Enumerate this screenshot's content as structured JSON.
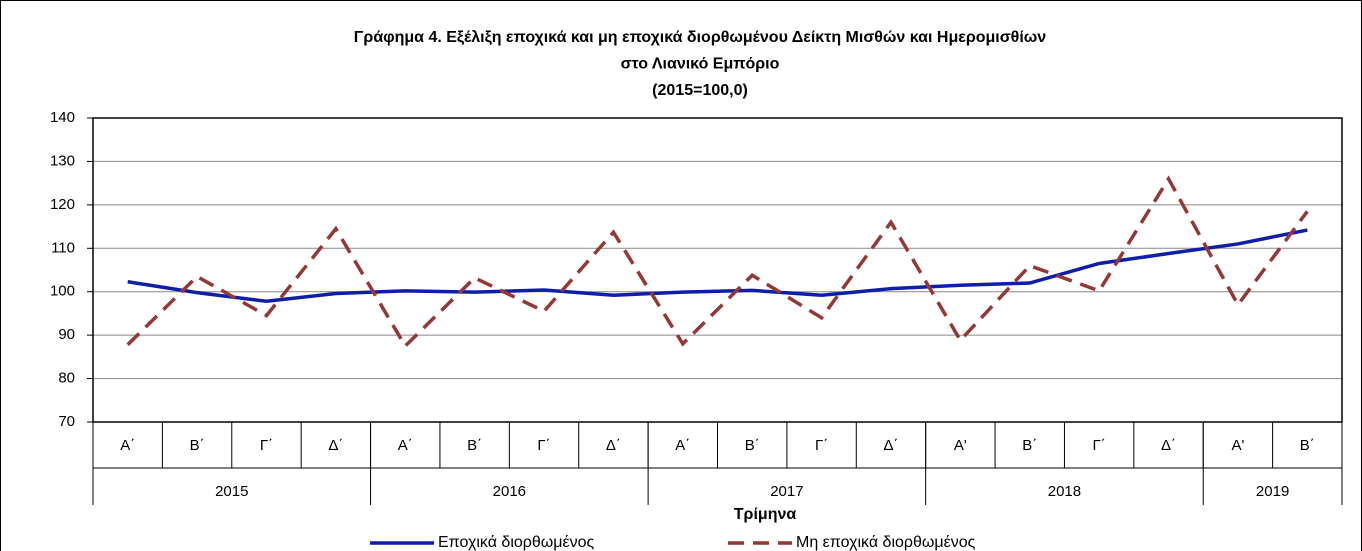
{
  "chart_data": {
    "type": "line",
    "title": [
      "Γράφημα 4. Εξέλιξη εποχικά και μη εποχικά διορθωμένου Δείκτη Μισθών και Ημερομισθίων",
      "στο Λιανικό Εμπόριο",
      "(2015=100,0)"
    ],
    "x_label": "Τρίμηνα",
    "categories": [
      "Α΄",
      "Β΄",
      "Γ΄",
      "Δ΄",
      "Α΄",
      "Β΄",
      "Γ΄",
      "Δ΄",
      "Α΄",
      "Β΄",
      "Γ΄",
      "Δ΄",
      "Α'",
      "Β΄",
      "Γ΄",
      "Δ΄",
      "Α'",
      "Β΄"
    ],
    "groups": [
      {
        "label": "2015",
        "span": 4
      },
      {
        "label": "2016",
        "span": 4
      },
      {
        "label": "2017",
        "span": 4
      },
      {
        "label": "2018",
        "span": 4
      },
      {
        "label": "2019",
        "span": 2
      }
    ],
    "series": [
      {
        "name": "Εποχικά διορθωμένος",
        "color": "#0e1ea8",
        "style": "solid",
        "values": [
          102.3,
          99.8,
          97.8,
          99.6,
          100.2,
          99.9,
          100.4,
          99.2,
          99.9,
          100.3,
          99.2,
          100.7,
          101.5,
          102.0,
          106.5,
          108.8,
          111.0,
          114.2
        ]
      },
      {
        "name": "Μη εποχικά διορθωμένος",
        "color": "#953735",
        "style": "dashed",
        "values": [
          87.8,
          103.5,
          94.5,
          114.5,
          87.5,
          103.2,
          95.5,
          113.7,
          88.0,
          103.8,
          94.0,
          116.0,
          88.8,
          106.0,
          100.2,
          126.0,
          97.0,
          118.5
        ]
      }
    ],
    "ylim": [
      70,
      140
    ],
    "yticks": [
      70,
      80,
      90,
      100,
      110,
      120,
      130,
      140
    ],
    "grid": true,
    "legend": "bottom"
  }
}
